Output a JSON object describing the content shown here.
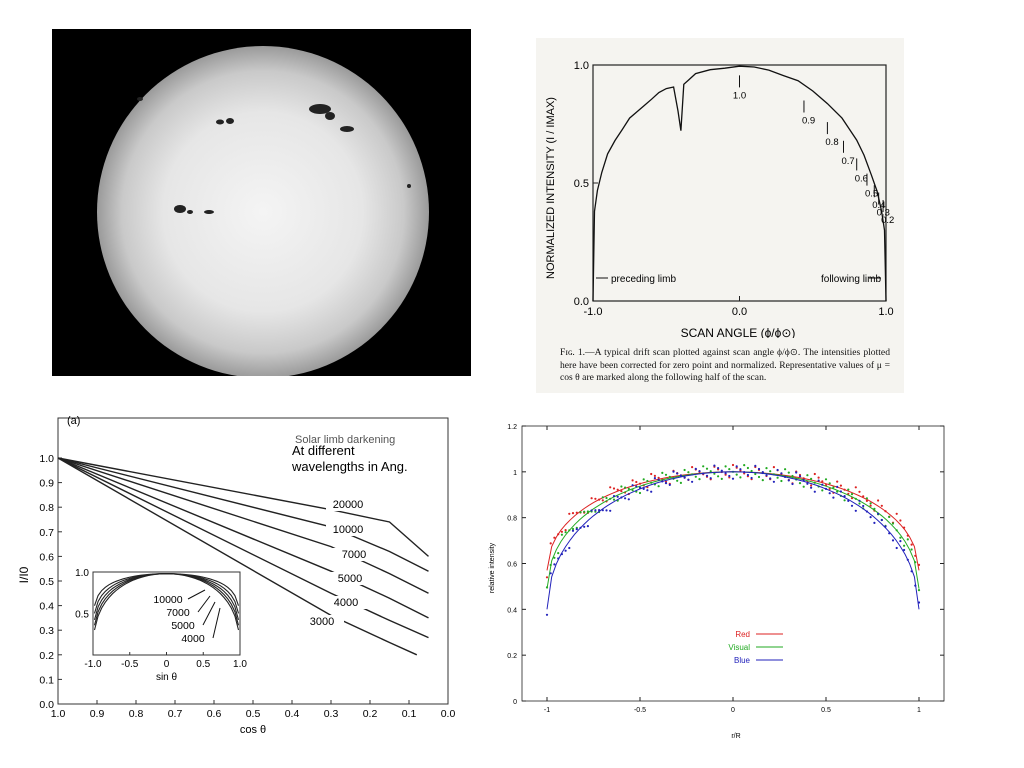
{
  "chart_data": [
    {
      "type": "image",
      "panel": "sun-photo",
      "description_visible": "",
      "colors": {
        "background": "#000000",
        "disk": "#e9e9e9"
      }
    },
    {
      "type": "line",
      "panel": "drift-scan",
      "title": "",
      "xlabel": "SCAN ANGLE (ϕ/ϕ⊙)",
      "ylabel": "NORMALIZED  INTENSITY (I / IMAX)",
      "xlim": [
        -1.0,
        1.0
      ],
      "ylim": [
        0.0,
        1.0
      ],
      "xticks": [
        "-1.0",
        "0.0",
        "1.0"
      ],
      "yticks": [
        "0.0",
        "0.5",
        "1.0"
      ],
      "series": [
        {
          "x": [
            -1.0,
            -0.99,
            -0.97,
            -0.94,
            -0.9,
            -0.85,
            -0.8,
            -0.75,
            -0.7,
            -0.65,
            -0.6,
            -0.55,
            -0.5,
            -0.45,
            -0.42,
            -0.4,
            -0.38,
            -0.35,
            -0.3,
            -0.2,
            -0.1,
            0.0,
            0.1,
            0.2,
            0.3,
            0.4,
            0.5,
            0.6,
            0.7,
            0.8,
            0.85,
            0.9,
            0.94,
            0.97,
            0.99,
            1.0
          ],
          "y": [
            0.0,
            0.38,
            0.47,
            0.55,
            0.62,
            0.68,
            0.73,
            0.77,
            0.8,
            0.83,
            0.86,
            0.88,
            0.9,
            0.91,
            0.8,
            0.72,
            0.92,
            0.94,
            0.96,
            0.98,
            0.99,
            0.99,
            0.99,
            0.98,
            0.96,
            0.93,
            0.89,
            0.84,
            0.77,
            0.68,
            0.62,
            0.54,
            0.46,
            0.38,
            0.3,
            0.0
          ]
        }
      ],
      "mu_markers": [
        {
          "label": "1.0",
          "x": 0.0
        },
        {
          "label": "0.9",
          "x": 0.44
        },
        {
          "label": "0.8",
          "x": 0.6
        },
        {
          "label": "0.7",
          "x": 0.71
        },
        {
          "label": "0.6",
          "x": 0.8
        },
        {
          "label": "0.5",
          "x": 0.87
        },
        {
          "label": "0.4",
          "x": 0.92
        },
        {
          "label": "0.3",
          "x": 0.95
        },
        {
          "label": "0.2",
          "x": 0.98
        }
      ],
      "annotations": [
        "preceding limb",
        "following limb"
      ],
      "caption": "Fɪɢ. 1.—A typical drift scan plotted against scan angle ϕ/ϕ⊙. The intensities plotted here have been corrected for zero point and normalized. Representative values of μ = cos θ are marked along the following half of the scan."
    },
    {
      "type": "line",
      "panel": "limb-darkening",
      "label": "(a)",
      "title": "Solar limb darkening",
      "subtitle": "At different wavelengths in Ang.",
      "xlabel": "cos θ",
      "ylabel": "I/I0",
      "xlim": [
        1.0,
        0.0
      ],
      "ylim": [
        0.0,
        1.0
      ],
      "xticks": [
        "1.0",
        "0.9",
        "0.8",
        "0.7",
        "0.6",
        "0.5",
        "0.4",
        "0.3",
        "0.2",
        "0.1",
        "0.0"
      ],
      "yticks": [
        "0.0",
        "0.1",
        "0.2",
        "0.3",
        "0.4",
        "0.5",
        "0.6",
        "0.7",
        "0.8",
        "0.9",
        "1.0"
      ],
      "series": [
        {
          "name": "20000",
          "x": [
            1.0,
            0.3,
            0.15,
            0.05
          ],
          "y": [
            1.0,
            0.79,
            0.74,
            0.6
          ]
        },
        {
          "name": "10000",
          "x": [
            1.0,
            0.3,
            0.15,
            0.05
          ],
          "y": [
            1.0,
            0.72,
            0.62,
            0.54
          ]
        },
        {
          "name": "7000",
          "x": [
            1.0,
            0.3,
            0.15,
            0.05
          ],
          "y": [
            1.0,
            0.64,
            0.53,
            0.45
          ]
        },
        {
          "name": "5000",
          "x": [
            1.0,
            0.3,
            0.15,
            0.05
          ],
          "y": [
            1.0,
            0.54,
            0.43,
            0.35
          ]
        },
        {
          "name": "4000",
          "x": [
            1.0,
            0.3,
            0.15,
            0.05
          ],
          "y": [
            1.0,
            0.45,
            0.34,
            0.27
          ]
        },
        {
          "name": "3000",
          "x": [
            1.0,
            0.3,
            0.15,
            0.08
          ],
          "y": [
            1.0,
            0.36,
            0.25,
            0.2
          ]
        }
      ],
      "inset": {
        "xlabel": "sin θ",
        "xticks": [
          "-1.0",
          "-0.5",
          "0",
          "0.5",
          "1.0"
        ],
        "yticks": [
          "0.5",
          "1.0"
        ],
        "labels": [
          "10000",
          "7000",
          "5000",
          "4000"
        ]
      }
    },
    {
      "type": "scatter",
      "panel": "relative-intensity",
      "xlabel": "r/R",
      "ylabel": "relative intensity",
      "xlim": [
        -1.0,
        1.0
      ],
      "ylim": [
        0.0,
        1.2
      ],
      "xticks": [
        "-1",
        "-0.5",
        "0",
        "0.5",
        "1"
      ],
      "yticks": [
        "0",
        "0.2",
        "0.4",
        "0.6",
        "0.8",
        "1",
        "1.2"
      ],
      "grid": false,
      "legend": "center-bottom",
      "series": [
        {
          "name": "Red",
          "color": "#dd2222",
          "limb_value": 0.45
        },
        {
          "name": "Visual",
          "color": "#22aa22",
          "limb_value": 0.38
        },
        {
          "name": "Blue",
          "color": "#2222bb",
          "limb_value": 0.3
        }
      ]
    }
  ]
}
